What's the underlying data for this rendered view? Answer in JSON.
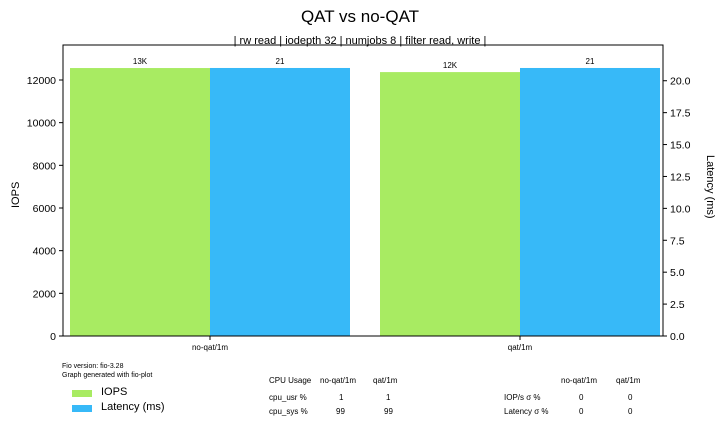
{
  "chart_data": {
    "type": "bar",
    "title": "QAT vs no-QAT",
    "subtitle": "| rw read | iodepth 32 | numjobs 8 | filter read, write |",
    "categories": [
      "no-qat/1m",
      "qat/1m"
    ],
    "ylabel": "IOPS",
    "y2label": "Latency (ms)",
    "ylim": [
      0,
      13640
    ],
    "y2lim": [
      0,
      22.8
    ],
    "yticks": [
      0,
      2000,
      4000,
      6000,
      8000,
      10000,
      12000
    ],
    "y2ticks": [
      "0.0",
      "2.5",
      "5.0",
      "7.5",
      "10.0",
      "12.5",
      "15.0",
      "17.5",
      "20.0"
    ],
    "grid": false,
    "series": [
      {
        "name": "IOPS",
        "axis": "left",
        "color": "#a8eb62",
        "values": [
          12560,
          12370
        ],
        "labels": [
          "13K",
          "12K"
        ]
      },
      {
        "name": "Latency (ms)",
        "axis": "right",
        "color": "#37b9f8",
        "values": [
          21.0,
          21.0
        ],
        "labels": [
          "21",
          "21"
        ]
      }
    ],
    "legend_placement": "bottom-left"
  },
  "footer": {
    "fio_version": "Fio version: fio-3.28",
    "generated": "Graph generated with fio-plot"
  },
  "cpu_table": {
    "headers": [
      "CPU Usage",
      "no-qat/1m",
      "qat/1m"
    ],
    "rows": [
      [
        "cpu_usr %",
        "1",
        "1"
      ],
      [
        "cpu_sys %",
        "99",
        "99"
      ]
    ]
  },
  "stddev_table": {
    "headers": [
      "",
      "no-qat/1m",
      "qat/1m"
    ],
    "rows": [
      [
        "IOP/s σ %",
        "0",
        "0"
      ],
      [
        "Latency σ %",
        "0",
        "0"
      ]
    ]
  }
}
